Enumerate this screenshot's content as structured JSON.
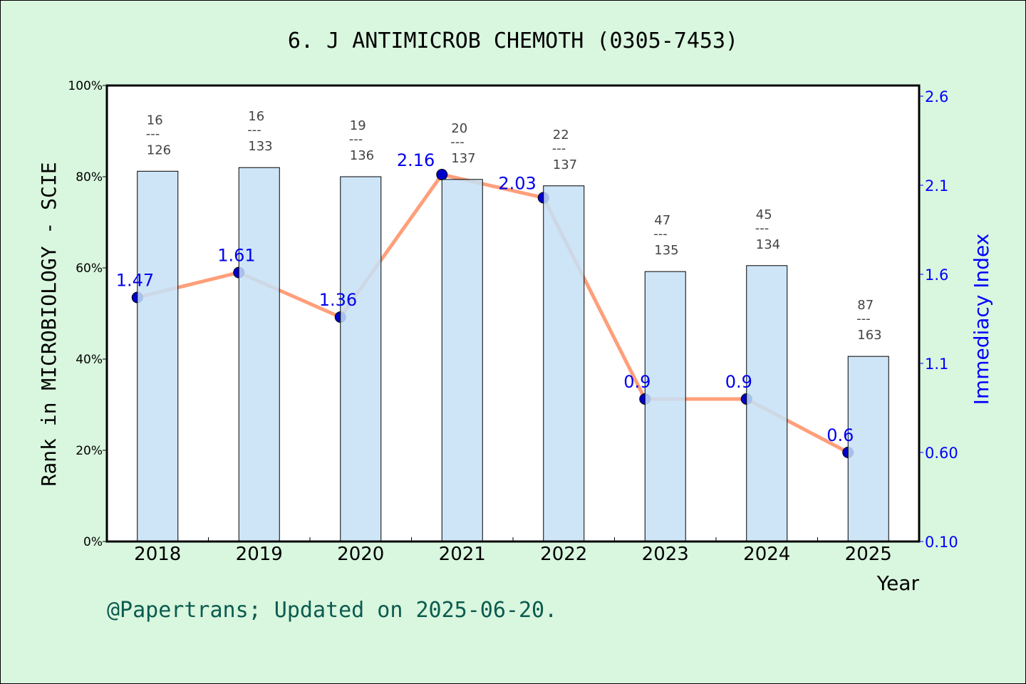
{
  "chart_data": {
    "type": "bar+line",
    "title": "6. J ANTIMICROB CHEMOTH (0305-7453)",
    "xlabel": "Year",
    "ylabel": "Rank in MICROBIOLOGY - SCIE",
    "y2label": "Immediacy Index",
    "categories": [
      "2018",
      "2019",
      "2020",
      "2021",
      "2022",
      "2023",
      "2024",
      "2025"
    ],
    "yticks": [
      "0%",
      "20%",
      "40%",
      "60%",
      "80%",
      "100%"
    ],
    "ylim": [
      0,
      100
    ],
    "y2ticks": [
      "0.10",
      "0.60",
      "1.1",
      "1.6",
      "2.1",
      "2.6"
    ],
    "y2lim": [
      0.1,
      2.6
    ],
    "bars": {
      "values": [
        81.2,
        82.0,
        80.0,
        79.4,
        78.0,
        59.2,
        60.5,
        40.6
      ],
      "rank": [
        "16",
        "16",
        "19",
        "20",
        "22",
        "47",
        "45",
        "87"
      ],
      "total": [
        "126",
        "133",
        "136",
        "137",
        "137",
        "135",
        "134",
        "163"
      ],
      "color": "#c5e0f7"
    },
    "line": {
      "values": [
        1.47,
        1.61,
        1.36,
        2.16,
        2.03,
        0.9,
        0.9,
        0.6
      ],
      "labels": [
        "1.47",
        "1.61",
        "1.36",
        "2.16",
        "2.03",
        "0.9",
        "0.9",
        "0.6"
      ],
      "color": "#ff9f7a",
      "marker_color": "#0000cc"
    },
    "grid": false
  },
  "footer": "@Papertrans; Updated on 2025-06-20."
}
